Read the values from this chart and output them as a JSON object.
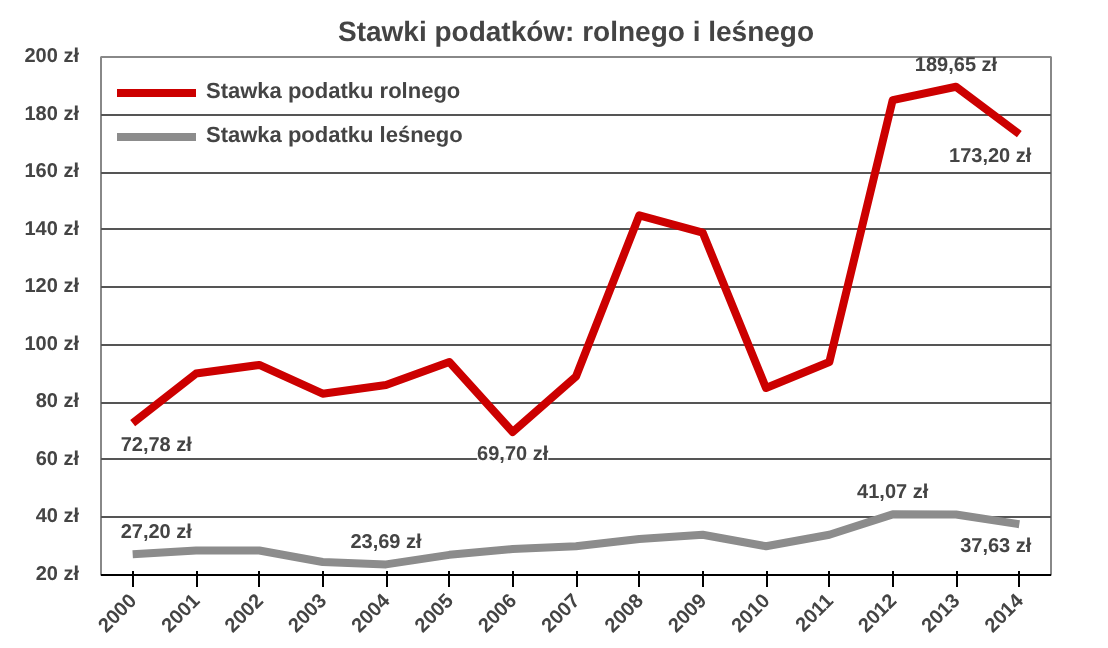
{
  "chart_data": {
    "type": "line",
    "title": "Stawki podatków: rolnego i leśnego",
    "categories": [
      "2000",
      "2001",
      "2002",
      "2003",
      "2004",
      "2005",
      "2006",
      "2007",
      "2008",
      "2009",
      "2010",
      "2011",
      "2012",
      "2013",
      "2014"
    ],
    "series": [
      {
        "name": "Stawka podatku rolnego",
        "color": "#cc0000",
        "values": [
          72.78,
          90,
          93,
          83,
          86,
          94,
          69.7,
          89,
          145,
          139,
          85,
          94,
          185,
          189.65,
          173.2
        ],
        "value_labels": [
          "72,78 zł",
          null,
          null,
          null,
          null,
          null,
          "69,70 zł",
          null,
          null,
          null,
          null,
          null,
          null,
          "189,65 zł",
          "173,20 zł"
        ]
      },
      {
        "name": "Stawka podatku leśnego",
        "color": "#8c8c8c",
        "values": [
          27.2,
          28.5,
          28.5,
          24.5,
          23.69,
          27,
          29,
          30,
          32.5,
          34,
          30,
          34,
          41.07,
          41,
          37.63
        ],
        "value_labels": [
          "27,20 zł",
          null,
          null,
          null,
          "23,69 zł",
          null,
          null,
          null,
          null,
          null,
          null,
          null,
          "41,07 zł",
          null,
          "37,63 zł"
        ]
      }
    ],
    "ylim": [
      20,
      200
    ],
    "yticks": [
      {
        "value": 20,
        "label": "20 zł"
      },
      {
        "value": 40,
        "label": "40 zł"
      },
      {
        "value": 60,
        "label": "60 zł"
      },
      {
        "value": 80,
        "label": "80 zł"
      },
      {
        "value": 100,
        "label": "100 zł"
      },
      {
        "value": 120,
        "label": "120 zł"
      },
      {
        "value": 140,
        "label": "140 zł"
      },
      {
        "value": 160,
        "label": "160 zł"
      },
      {
        "value": 180,
        "label": "180 zł"
      },
      {
        "value": 200,
        "label": "200 zł"
      }
    ],
    "grid": "y",
    "legend": "top left",
    "marker": "none",
    "line_style": "solid"
  }
}
